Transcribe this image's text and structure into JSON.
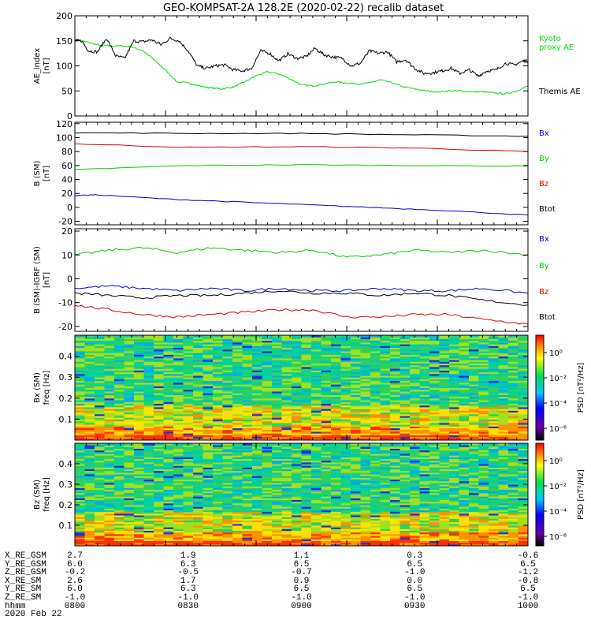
{
  "chart_data": {
    "type": "line",
    "title": "GEO-KOMPSAT-2A 128.2E (2020-02-22) recalib dataset",
    "x_range": [
      800,
      1000
    ],
    "x_ticks": [
      "0800",
      "0830",
      "0900",
      "0930",
      "1000"
    ],
    "panels": [
      {
        "id": "ae",
        "ylabel": "AE_index",
        "yunit": "[nT]",
        "ylim": [
          0,
          200
        ],
        "yticks": [
          "0",
          "50",
          "100",
          "150",
          "200"
        ],
        "legend": [
          "Kyoto",
          "proxy AE",
          "Themis AE"
        ],
        "series": [
          {
            "name": "Kyoto proxy AE",
            "color": "#00dd00",
            "x": [
              800,
              805,
              810,
              815,
              820,
              825,
              830,
              835,
              840,
              845,
              850,
              855,
              860,
              865,
              870,
              875,
              880,
              885,
              890,
              895,
              900,
              905,
              910,
              915,
              920,
              925,
              930,
              935,
              940,
              945,
              950,
              955,
              960,
              965,
              970,
              975,
              980,
              985,
              990,
              995,
              1000
            ],
            "y": [
              152,
              148,
              142,
              140,
              140,
              138,
              130,
              112,
              92,
              68,
              66,
              60,
              56,
              54,
              58,
              68,
              80,
              88,
              84,
              74,
              62,
              60,
              64,
              68,
              66,
              64,
              66,
              72,
              66,
              58,
              54,
              50,
              48,
              50,
              50,
              48,
              48,
              46,
              44,
              50,
              60
            ]
          },
          {
            "name": "Themis AE",
            "color": "#000000",
            "x": [
              800,
              803,
              806,
              810,
              814,
              818,
              822,
              826,
              830,
              834,
              838,
              842,
              846,
              850,
              854,
              858,
              862,
              866,
              870,
              874,
              878,
              882,
              886,
              890,
              894,
              898,
              902,
              906,
              910,
              914,
              918,
              922,
              926,
              930,
              934,
              938,
              942,
              946,
              950,
              954,
              958,
              962,
              966,
              970,
              974,
              978,
              982,
              986,
              990,
              994,
              998,
              1000
            ],
            "y": [
              150,
              150,
              130,
              128,
              155,
              120,
              115,
              150,
              148,
              152,
              142,
              155,
              150,
              130,
              100,
              95,
              100,
              102,
              92,
              90,
              95,
              130,
              125,
              110,
              124,
              115,
              118,
              135,
              122,
              118,
              115,
              100,
              105,
              130,
              125,
              128,
              108,
              112,
              95,
              85,
              86,
              90,
              95,
              85,
              92,
              80,
              90,
              92,
              105,
              102,
              110,
              110
            ]
          }
        ]
      },
      {
        "id": "bsm",
        "ylabel": "B (SM)",
        "yunit": "[nT]",
        "ylim": [
          -25,
          122
        ],
        "yticks": [
          "-20",
          "0",
          "20",
          "40",
          "60",
          "80",
          "100",
          "120"
        ],
        "legend": [
          "Bx",
          "By",
          "Bz",
          "Btot"
        ],
        "series": [
          {
            "name": "Btot",
            "color": "#000000",
            "x": [
              800,
              850,
              900,
              950,
              1000
            ],
            "y": [
              107,
              106,
              106,
              104,
              102
            ]
          },
          {
            "name": "Bz",
            "color": "#dd0000",
            "x": [
              800,
              850,
              900,
              950,
              1000
            ],
            "y": [
              91,
              86,
              87,
              85,
              80
            ]
          },
          {
            "name": "By",
            "color": "#00cc00",
            "x": [
              800,
              850,
              900,
              950,
              1000
            ],
            "y": [
              54,
              60,
              61,
              60,
              59
            ]
          },
          {
            "name": "Bx",
            "color": "#0000cc",
            "x": [
              800,
              810,
              840,
              870,
              900,
              930,
              960,
              1000
            ],
            "y": [
              17,
              18,
              12,
              8,
              4,
              0,
              -4,
              -11
            ]
          }
        ]
      },
      {
        "id": "bigrf",
        "ylabel": "B (SM)-IGRF (SM)",
        "yunit": "[nT]",
        "ylim": [
          -22,
          21
        ],
        "yticks": [
          "-20",
          "-10",
          "0",
          "10",
          "20"
        ],
        "legend": [
          "Bx",
          "By",
          "Bz",
          "Btot"
        ],
        "series": [
          {
            "name": "By",
            "color": "#00cc00",
            "x": [
              800,
              815,
              830,
              845,
              860,
              875,
              890,
              905,
              920,
              935,
              950,
              965,
              980,
              1000
            ],
            "y": [
              10,
              12,
              13,
              11,
              13,
              12,
              11,
              12,
              9,
              10,
              12,
              11,
              12,
              10
            ]
          },
          {
            "name": "Bx",
            "color": "#0000cc",
            "x": [
              800,
              815,
              830,
              845,
              860,
              875,
              890,
              905,
              920,
              935,
              950,
              965,
              980,
              1000
            ],
            "y": [
              -4,
              -3,
              -4,
              -5,
              -4,
              -5,
              -4,
              -5,
              -5,
              -4,
              -5,
              -5,
              -4,
              -6
            ]
          },
          {
            "name": "Btot",
            "color": "#000000",
            "x": [
              800,
              815,
              830,
              845,
              860,
              875,
              890,
              905,
              920,
              935,
              950,
              965,
              980,
              1000
            ],
            "y": [
              -6,
              -7,
              -8,
              -7,
              -7,
              -6,
              -5,
              -6,
              -6,
              -7,
              -6,
              -7,
              -9,
              -11
            ]
          },
          {
            "name": "Bz",
            "color": "#dd0000",
            "x": [
              800,
              815,
              830,
              845,
              860,
              875,
              890,
              905,
              920,
              935,
              950,
              965,
              980,
              1000
            ],
            "y": [
              -11,
              -13,
              -15,
              -16,
              -15,
              -14,
              -13,
              -13,
              -16,
              -16,
              -15,
              -15,
              -17,
              -19
            ]
          }
        ]
      },
      {
        "id": "specx",
        "type": "heatmap",
        "ylabel": "Bx (SM)",
        "yunit": "freq [Hz]",
        "ylim": [
          0,
          0.5
        ],
        "yticks": [
          "0.1",
          "0.2",
          "0.3",
          "0.4"
        ],
        "cbar_label": "PSD [nT²/Hz]",
        "cbar_ticks": [
          "10⁰",
          "10⁻²",
          "10⁻⁴",
          "10⁻⁶"
        ]
      },
      {
        "id": "specz",
        "type": "heatmap",
        "ylabel": "Bz (SM)",
        "yunit": "freq [Hz]",
        "ylim": [
          0,
          0.5
        ],
        "yticks": [
          "0.1",
          "0.2",
          "0.3",
          "0.4"
        ],
        "cbar_label": "PSD [nT²/Hz]",
        "cbar_ticks": [
          "10⁰",
          "10⁻²",
          "10⁻⁴",
          "10⁻⁶"
        ]
      }
    ]
  },
  "ephemeris": [
    {
      "label": "X_RE_GSM",
      "values": [
        "2.7",
        "1.9",
        "1.1",
        "0.3",
        "-0.6"
      ]
    },
    {
      "label": "Y_RE_GSM",
      "values": [
        "6.0",
        "6.3",
        "6.5",
        "6.5",
        "6.5"
      ]
    },
    {
      "label": "Z_RE_GSM",
      "values": [
        "-0.2",
        "-0.5",
        "-0.7",
        "-1.0",
        "-1.2"
      ]
    },
    {
      "label": "X_RE_SM",
      "values": [
        "2.6",
        "1.7",
        "0.9",
        "0.0",
        "-0.8"
      ]
    },
    {
      "label": "Y_RE_SM",
      "values": [
        "6.0",
        "6.3",
        "6.5",
        "6.5",
        "6.5"
      ]
    },
    {
      "label": "Z_RE_SM",
      "values": [
        "-1.0",
        "-1.0",
        "-1.0",
        "-1.0",
        "-1.0"
      ]
    },
    {
      "label": "hhmm",
      "values": [
        "0800",
        "0830",
        "0900",
        "0930",
        "1000"
      ]
    }
  ],
  "date": "2020 Feb 22"
}
